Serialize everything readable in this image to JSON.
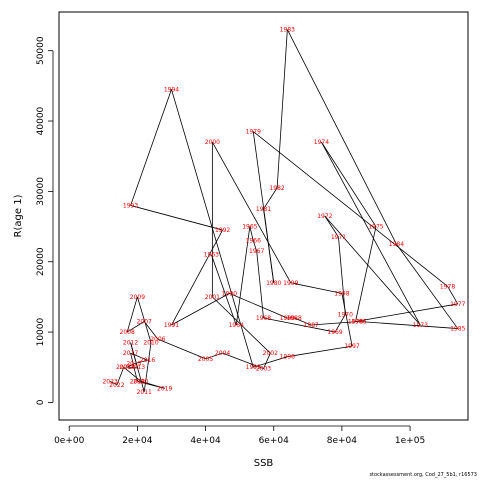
{
  "chart_data": {
    "type": "line",
    "title": "",
    "xlabel": "SSB",
    "ylabel": "R(age 1)",
    "x_ticks": [
      0,
      20000,
      40000,
      60000,
      80000,
      100000
    ],
    "x_tick_labels": [
      "0e+00",
      "2e+04",
      "4e+04",
      "6e+04",
      "8e+04",
      "1e+05"
    ],
    "y_ticks": [
      0,
      10000,
      20000,
      30000,
      40000,
      50000
    ],
    "y_tick_labels": [
      "0",
      "10000",
      "20000",
      "30000",
      "40000",
      "50000"
    ],
    "xlim": [
      -3000,
      117000
    ],
    "ylim": [
      -2500,
      55500
    ],
    "grid": false,
    "label_color": "#ff0000",
    "line_color": "#000000",
    "points": [
      {
        "year": "1963",
        "ssb": 41700,
        "rec": 21000
      },
      {
        "year": "1964",
        "ssb": 49000,
        "rec": 11000
      },
      {
        "year": "1965",
        "ssb": 53000,
        "rec": 25000
      },
      {
        "year": "1966",
        "ssb": 54000,
        "rec": 23000
      },
      {
        "year": "1967",
        "ssb": 55000,
        "rec": 21500
      },
      {
        "year": "1968",
        "ssb": 57000,
        "rec": 12000
      },
      {
        "year": "1969",
        "ssb": 78000,
        "rec": 10000
      },
      {
        "year": "1970",
        "ssb": 81000,
        "rec": 12500
      },
      {
        "year": "1971",
        "ssb": 79000,
        "rec": 23500
      },
      {
        "year": "1972",
        "ssb": 75000,
        "rec": 26500
      },
      {
        "year": "1973",
        "ssb": 103000,
        "rec": 11000
      },
      {
        "year": "1974",
        "ssb": 74000,
        "rec": 37000
      },
      {
        "year": "1975",
        "ssb": 90000,
        "rec": 25000
      },
      {
        "year": "1976",
        "ssb": 84000,
        "rec": 11500
      },
      {
        "year": "1977",
        "ssb": 114000,
        "rec": 14000
      },
      {
        "year": "1978",
        "ssb": 111000,
        "rec": 16500
      },
      {
        "year": "1979",
        "ssb": 54000,
        "rec": 38500
      },
      {
        "year": "1980",
        "ssb": 60000,
        "rec": 17000
      },
      {
        "year": "1981",
        "ssb": 57000,
        "rec": 27500
      },
      {
        "year": "1982",
        "ssb": 61000,
        "rec": 30500
      },
      {
        "year": "1983",
        "ssb": 64000,
        "rec": 53000
      },
      {
        "year": "1984",
        "ssb": 96000,
        "rec": 22500
      },
      {
        "year": "1985",
        "ssb": 114000,
        "rec": 10500
      },
      {
        "year": "1986",
        "ssb": 85000,
        "rec": 11500
      },
      {
        "year": "1987",
        "ssb": 71000,
        "rec": 11000
      },
      {
        "year": "1988",
        "ssb": 66000,
        "rec": 12000
      },
      {
        "year": "1989",
        "ssb": 64000,
        "rec": 12000
      },
      {
        "year": "1990",
        "ssb": 47000,
        "rec": 15500
      },
      {
        "year": "1991",
        "ssb": 30000,
        "rec": 11000
      },
      {
        "year": "1992",
        "ssb": 45000,
        "rec": 24500
      },
      {
        "year": "1993",
        "ssb": 18000,
        "rec": 28000
      },
      {
        "year": "1994",
        "ssb": 30000,
        "rec": 44500
      },
      {
        "year": "1995",
        "ssb": 54000,
        "rec": 5000
      },
      {
        "year": "1996",
        "ssb": 64000,
        "rec": 6500
      },
      {
        "year": "1997",
        "ssb": 83000,
        "rec": 8000
      },
      {
        "year": "1998",
        "ssb": 80000,
        "rec": 15500
      },
      {
        "year": "1999",
        "ssb": 65000,
        "rec": 17000
      },
      {
        "year": "2000",
        "ssb": 42000,
        "rec": 37000
      },
      {
        "year": "2001",
        "ssb": 42000,
        "rec": 15000
      },
      {
        "year": "2002",
        "ssb": 59000,
        "rec": 7000
      },
      {
        "year": "2003",
        "ssb": 57000,
        "rec": 4800
      },
      {
        "year": "2004",
        "ssb": 45000,
        "rec": 7000
      },
      {
        "year": "2005",
        "ssb": 40000,
        "rec": 6200
      },
      {
        "year": "2006",
        "ssb": 26000,
        "rec": 9000
      },
      {
        "year": "2007",
        "ssb": 22000,
        "rec": 11500
      },
      {
        "year": "2008",
        "ssb": 17000,
        "rec": 10000
      },
      {
        "year": "2009",
        "ssb": 20000,
        "rec": 15000
      },
      {
        "year": "2010",
        "ssb": 24000,
        "rec": 8500
      },
      {
        "year": "2011",
        "ssb": 22000,
        "rec": 1500
      },
      {
        "year": "2012",
        "ssb": 18000,
        "rec": 8500
      },
      {
        "year": "2013",
        "ssb": 20000,
        "rec": 5000
      },
      {
        "year": "2014",
        "ssb": 17000,
        "rec": 5000
      },
      {
        "year": "2015",
        "ssb": 19000,
        "rec": 5500
      },
      {
        "year": "2016",
        "ssb": 23000,
        "rec": 6000
      },
      {
        "year": "2017",
        "ssb": 18000,
        "rec": 7000
      },
      {
        "year": "2018",
        "ssb": 20000,
        "rec": 3000
      },
      {
        "year": "2019",
        "ssb": 28000,
        "rec": 2000
      },
      {
        "year": "2020",
        "ssb": 21000,
        "rec": 3000
      },
      {
        "year": "2021",
        "ssb": 16000,
        "rec": 5000
      },
      {
        "year": "2022",
        "ssb": 14000,
        "rec": 2500
      },
      {
        "year": "2023",
        "ssb": 12000,
        "rec": 3000
      }
    ]
  },
  "footer_text": "stockassessment.org, Cod_27_5b1, r16573"
}
